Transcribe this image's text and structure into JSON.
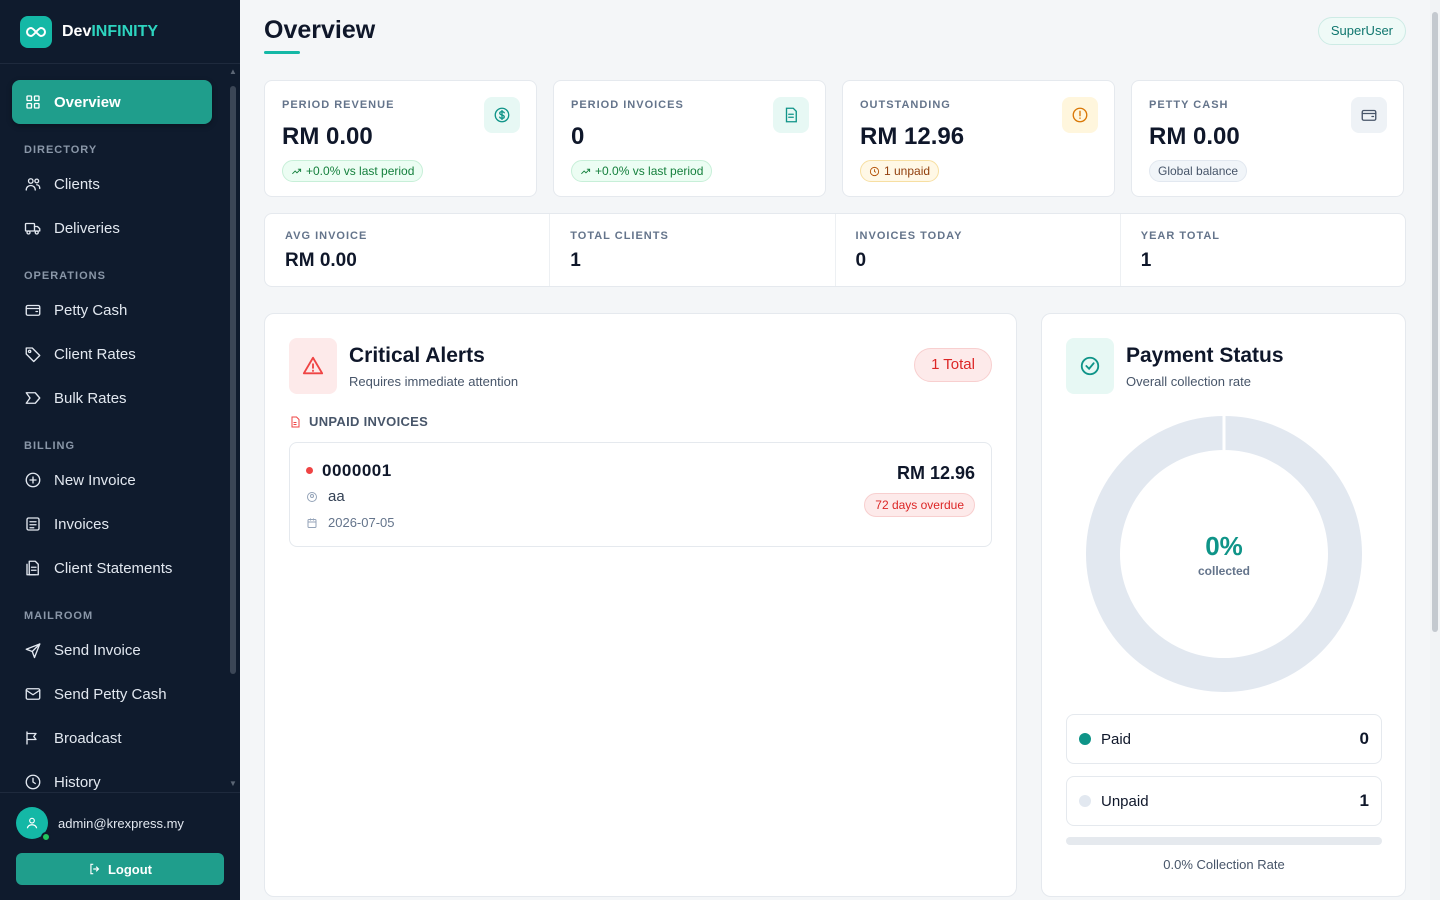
{
  "brand": {
    "name_prefix": "Dev",
    "name_accent": "INFINITY"
  },
  "sidebar": {
    "items": [
      {
        "type": "item",
        "label": "Overview",
        "icon": "grid-icon",
        "active": true
      },
      {
        "type": "section",
        "label": "DIRECTORY"
      },
      {
        "type": "item",
        "label": "Clients",
        "icon": "users-icon"
      },
      {
        "type": "item",
        "label": "Deliveries",
        "icon": "truck-icon"
      },
      {
        "type": "section",
        "label": "OPERATIONS"
      },
      {
        "type": "item",
        "label": "Petty Cash",
        "icon": "wallet-icon"
      },
      {
        "type": "item",
        "label": "Client Rates",
        "icon": "tag-icon"
      },
      {
        "type": "item",
        "label": "Bulk Rates",
        "icon": "label-icon"
      },
      {
        "type": "section",
        "label": "BILLING"
      },
      {
        "type": "item",
        "label": "New Invoice",
        "icon": "plus-circle-icon"
      },
      {
        "type": "item",
        "label": "Invoices",
        "icon": "receipt-icon"
      },
      {
        "type": "item",
        "label": "Client Statements",
        "icon": "document-icon"
      },
      {
        "type": "section",
        "label": "MAILROOM"
      },
      {
        "type": "item",
        "label": "Send Invoice",
        "icon": "send-icon"
      },
      {
        "type": "item",
        "label": "Send Petty Cash",
        "icon": "mail-icon"
      },
      {
        "type": "item",
        "label": "Broadcast",
        "icon": "megaphone-icon"
      },
      {
        "type": "item",
        "label": "History",
        "icon": "history-icon"
      }
    ],
    "user_email": "admin@krexpress.my",
    "logout_label": "Logout"
  },
  "header": {
    "title": "Overview",
    "role": "SuperUser"
  },
  "stats": [
    {
      "label": "PERIOD REVENUE",
      "value": "RM 0.00",
      "pill": "+0.0% vs last period",
      "pill_style": "green",
      "icon": "dollar-circle-icon",
      "icon_bg": "#e7f8f4",
      "icon_color": "#0f9488"
    },
    {
      "label": "PERIOD INVOICES",
      "value": "0",
      "pill": "+0.0% vs last period",
      "pill_style": "green",
      "icon": "file-icon",
      "icon_bg": "#e7f8f4",
      "icon_color": "#0f9488"
    },
    {
      "label": "OUTSTANDING",
      "value": "RM 12.96",
      "pill": "1 unpaid",
      "pill_style": "amber",
      "icon": "alert-circle-icon",
      "icon_bg": "#fff6dd",
      "icon_color": "#d97706"
    },
    {
      "label": "PETTY CASH",
      "value": "RM 0.00",
      "pill": "Global balance",
      "pill_style": "gray",
      "icon": "wallet-icon",
      "icon_bg": "#eef2f6",
      "icon_color": "#475569"
    }
  ],
  "mini_stats": [
    {
      "label": "AVG INVOICE",
      "value": "RM 0.00"
    },
    {
      "label": "TOTAL CLIENTS",
      "value": "1"
    },
    {
      "label": "INVOICES TODAY",
      "value": "0"
    },
    {
      "label": "YEAR TOTAL",
      "value": "1"
    }
  ],
  "alerts": {
    "title": "Critical Alerts",
    "subtitle": "Requires immediate attention",
    "total_badge": "1 Total",
    "section_label": "UNPAID INVOICES",
    "invoices": [
      {
        "number": "0000001",
        "client": "aa",
        "date": "2026-07-05",
        "amount": "RM 12.96",
        "overdue": "72 days overdue"
      }
    ]
  },
  "payment": {
    "title": "Payment Status",
    "subtitle": "Overall collection rate",
    "collected_pct": "0%",
    "collected_label": "collected",
    "collected_fraction": 0,
    "paid_label": "Paid",
    "paid_value": "0",
    "unpaid_label": "Unpaid",
    "unpaid_value": "1",
    "rate_text": "0.0% Collection Rate",
    "colors": {
      "paid": "#0f9488",
      "unpaid": "#e2e8f0"
    }
  }
}
